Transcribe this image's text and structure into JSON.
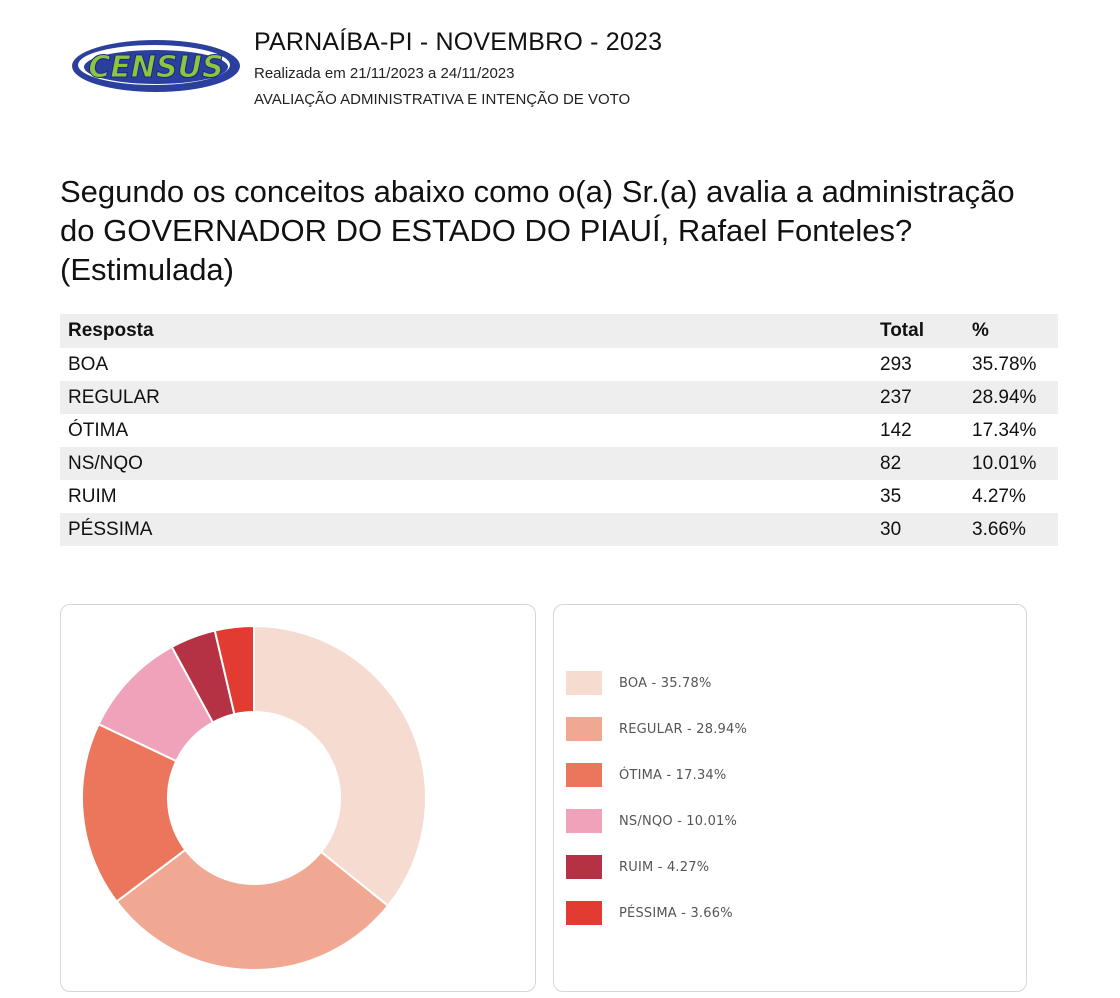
{
  "header": {
    "logo_text": "CENSUS",
    "title": "PARNAÍBA-PI - NOVEMBRO  - 2023",
    "subtitle": "Realizada em 21/11/2023 a 24/11/2023",
    "subtitle2": "AVALIAÇÃO ADMINISTRATIVA E INTENÇÃO DE VOTO"
  },
  "question": "Segundo os conceitos abaixo como o(a) Sr.(a) avalia a administração do GOVERNADOR DO ESTADO DO PIAUÍ, Rafael Fonteles? (Estimulada)",
  "table": {
    "headers": [
      "Resposta",
      "Total",
      "%"
    ],
    "rows": [
      {
        "resposta": "BOA",
        "total": "293",
        "pct": "35.78%"
      },
      {
        "resposta": "REGULAR",
        "total": "237",
        "pct": "28.94%"
      },
      {
        "resposta": "ÓTIMA",
        "total": "142",
        "pct": "17.34%"
      },
      {
        "resposta": "NS/NQO",
        "total": "82",
        "pct": "10.01%"
      },
      {
        "resposta": "RUIM",
        "total": "35",
        "pct": "4.27%"
      },
      {
        "resposta": "PÉSSIMA",
        "total": "30",
        "pct": "3.66%"
      }
    ]
  },
  "chart_data": {
    "type": "pie",
    "variant": "donut",
    "categories": [
      "BOA",
      "REGULAR",
      "ÓTIMA",
      "NS/NQO",
      "RUIM",
      "PÉSSIMA"
    ],
    "values": [
      35.78,
      28.94,
      17.34,
      10.01,
      4.27,
      3.66
    ],
    "colors": [
      "#f6dbd0",
      "#f1a893",
      "#ec765c",
      "#f0a2bb",
      "#b53244",
      "#e23c32"
    ],
    "legend_labels": [
      "BOA - 35.78%",
      "REGULAR - 28.94%",
      "ÓTIMA - 17.34%",
      "NS/NQO - 10.01%",
      "RUIM - 4.27%",
      "PÉSSIMA - 3.66%"
    ],
    "legend_position": "right",
    "title": ""
  },
  "colors": {
    "logo_blue": "#2b3f9e",
    "logo_green": "#8cc63f",
    "row_shade": "#eeeeee"
  }
}
